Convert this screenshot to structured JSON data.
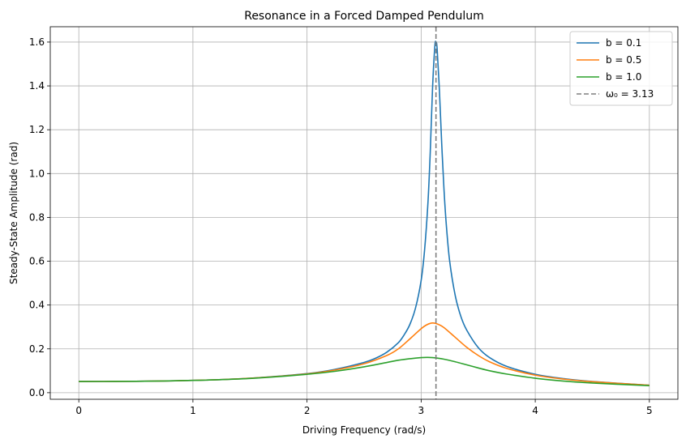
{
  "chart_data": {
    "type": "line",
    "title": "Resonance in a Forced Damped Pendulum",
    "xlabel": "Driving Frequency (rad/s)",
    "ylabel": "Steady-State Amplitude (rad)",
    "xlim": [
      -0.25,
      5.25
    ],
    "ylim": [
      -0.03,
      1.67
    ],
    "x_ticks": [
      0,
      1,
      2,
      3,
      4,
      5
    ],
    "x_tick_labels": [
      "0",
      "1",
      "2",
      "3",
      "4",
      "5"
    ],
    "y_ticks": [
      0.0,
      0.2,
      0.4,
      0.6,
      0.8,
      1.0,
      1.2,
      1.4,
      1.6
    ],
    "y_tick_labels": [
      "0.0",
      "0.2",
      "0.4",
      "0.6",
      "0.8",
      "1.0",
      "1.2",
      "1.4",
      "1.6"
    ],
    "grid": true,
    "legend_position": "top-right",
    "series": [
      {
        "name": "b = 0.1",
        "color": "#1f77b4",
        "x": [
          0,
          0.5,
          1.0,
          1.5,
          2.0,
          2.25,
          2.5,
          2.6,
          2.7,
          2.8,
          2.85,
          2.9,
          2.95,
          3.0,
          3.03,
          3.06,
          3.08,
          3.1,
          3.12,
          3.13,
          3.14,
          3.16,
          3.18,
          3.2,
          3.22,
          3.25,
          3.3,
          3.35,
          3.4,
          3.5,
          3.6,
          3.75,
          4.0,
          4.25,
          4.5,
          5.0
        ],
        "values": [
          0.051,
          0.052,
          0.056,
          0.066,
          0.087,
          0.107,
          0.138,
          0.157,
          0.185,
          0.228,
          0.263,
          0.31,
          0.385,
          0.512,
          0.65,
          0.87,
          1.1,
          1.39,
          1.58,
          1.6,
          1.57,
          1.38,
          1.14,
          0.93,
          0.77,
          0.6,
          0.44,
          0.345,
          0.285,
          0.206,
          0.16,
          0.12,
          0.084,
          0.064,
          0.051,
          0.034
        ]
      },
      {
        "name": "b = 0.5",
        "color": "#ff7f0e",
        "x": [
          0,
          0.5,
          1.0,
          1.5,
          2.0,
          2.25,
          2.5,
          2.7,
          2.8,
          2.9,
          3.0,
          3.05,
          3.1,
          3.15,
          3.2,
          3.3,
          3.4,
          3.5,
          3.6,
          3.75,
          4.0,
          4.25,
          4.5,
          5.0
        ],
        "values": [
          0.051,
          0.052,
          0.056,
          0.066,
          0.086,
          0.104,
          0.132,
          0.17,
          0.2,
          0.245,
          0.292,
          0.31,
          0.318,
          0.312,
          0.297,
          0.252,
          0.207,
          0.17,
          0.141,
          0.111,
          0.08,
          0.062,
          0.05,
          0.034
        ]
      },
      {
        "name": "b = 1.0",
        "color": "#2ca02c",
        "x": [
          0,
          0.5,
          1.0,
          1.5,
          2.0,
          2.25,
          2.5,
          2.7,
          2.8,
          2.9,
          3.0,
          3.05,
          3.1,
          3.2,
          3.3,
          3.4,
          3.5,
          3.6,
          3.75,
          4.0,
          4.25,
          4.5,
          5.0
        ],
        "values": [
          0.051,
          0.052,
          0.056,
          0.065,
          0.084,
          0.098,
          0.118,
          0.138,
          0.148,
          0.155,
          0.16,
          0.161,
          0.16,
          0.153,
          0.141,
          0.127,
          0.113,
          0.1,
          0.085,
          0.066,
          0.053,
          0.044,
          0.032
        ]
      }
    ],
    "reference_line": {
      "name": "ω₀ = 3.13",
      "x": 3.13,
      "color": "#7f7f7f",
      "style": "dashed"
    }
  }
}
